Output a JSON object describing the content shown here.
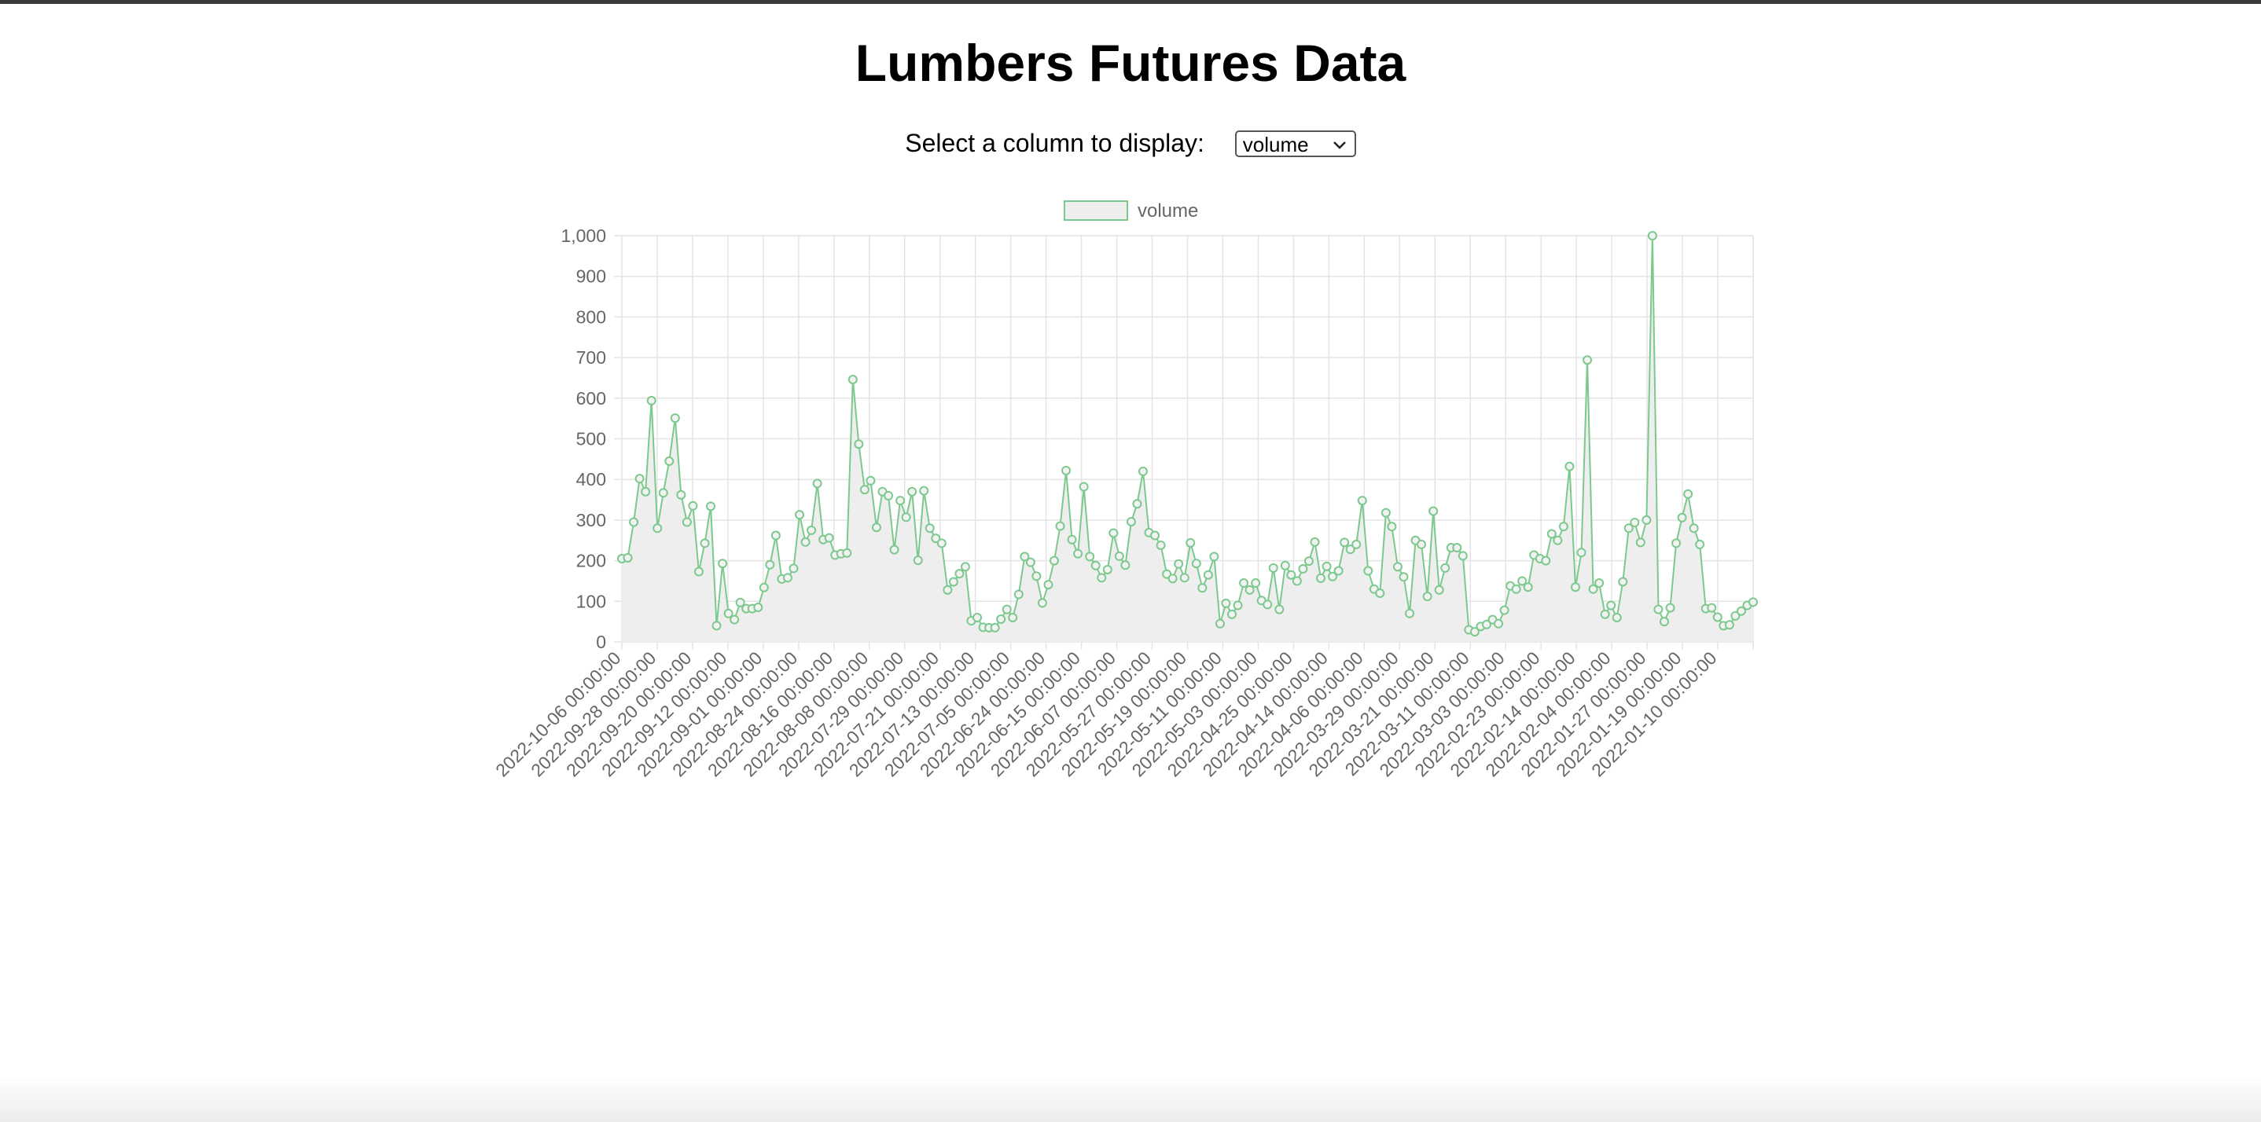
{
  "page": {
    "title": "Lumbers Futures Data"
  },
  "selector": {
    "label": "Select a column to display:",
    "value": "volume"
  },
  "colors": {
    "line": "#7cc98d",
    "fill": "#eeeeee",
    "grid": "#e4e4e4",
    "tick": "#666666"
  },
  "chart_data": {
    "type": "line",
    "title": "",
    "xlabel": "",
    "ylabel": "",
    "ylim": [
      0,
      1000
    ],
    "yticks": [
      "0",
      "100",
      "200",
      "300",
      "400",
      "500",
      "600",
      "700",
      "800",
      "900",
      "1,000"
    ],
    "grid": true,
    "legend": "top-center",
    "x_tick_labels": [
      "2022-10-06 00:00:00",
      "2022-09-28 00:00:00",
      "2022-09-20 00:00:00",
      "2022-09-12 00:00:00",
      "2022-09-01 00:00:00",
      "2022-08-24 00:00:00",
      "2022-08-16 00:00:00",
      "2022-08-08 00:00:00",
      "2022-07-29 00:00:00",
      "2022-07-21 00:00:00",
      "2022-07-13 00:00:00",
      "2022-07-05 00:00:00",
      "2022-06-24 00:00:00",
      "2022-06-15 00:00:00",
      "2022-06-07 00:00:00",
      "2022-05-27 00:00:00",
      "2022-05-19 00:00:00",
      "2022-05-11 00:00:00",
      "2022-05-03 00:00:00",
      "2022-04-25 00:00:00",
      "2022-04-14 00:00:00",
      "2022-04-06 00:00:00",
      "2022-03-29 00:00:00",
      "2022-03-21 00:00:00",
      "2022-03-11 00:00:00",
      "2022-03-03 00:00:00",
      "2022-02-23 00:00:00",
      "2022-02-14 00:00:00",
      "2022-02-04 00:00:00",
      "2022-01-27 00:00:00",
      "2022-01-19 00:00:00",
      "2022-01-10 00:00:00"
    ],
    "series": [
      {
        "name": "volume",
        "values": [
          205,
          207,
          295,
          402,
          370,
          594,
          280,
          367,
          445,
          551,
          362,
          295,
          335,
          173,
          243,
          334,
          40,
          193,
          70,
          55,
          97,
          82,
          82,
          85,
          134,
          190,
          262,
          155,
          158,
          181,
          313,
          246,
          275,
          390,
          252,
          256,
          214,
          217,
          219,
          646,
          487,
          375,
          397,
          282,
          370,
          360,
          227,
          348,
          307,
          370,
          201,
          372,
          280,
          255,
          243,
          128,
          148,
          168,
          185,
          52,
          60,
          36,
          35,
          35,
          56,
          80,
          60,
          117,
          210,
          196,
          162,
          96,
          141,
          200,
          285,
          422,
          252,
          217,
          382,
          210,
          188,
          158,
          178,
          268,
          211,
          189,
          296,
          340,
          420,
          269,
          262,
          238,
          167,
          156,
          192,
          158,
          244,
          193,
          133,
          165,
          210,
          45,
          95,
          68,
          90,
          145,
          128,
          145,
          102,
          92,
          182,
          80,
          188,
          165,
          150,
          180,
          199,
          246,
          157,
          186,
          161,
          175,
          245,
          228,
          240,
          348,
          175,
          130,
          120,
          318,
          284,
          185,
          160,
          70,
          250,
          240,
          112,
          322,
          128,
          182,
          232,
          232,
          212,
          30,
          25,
          38,
          43,
          55,
          45,
          78,
          138,
          130,
          150,
          135,
          214,
          205,
          200,
          266,
          250,
          284,
          432,
          135,
          220,
          694,
          130,
          145,
          68,
          90,
          60,
          148,
          280,
          294,
          245,
          300,
          1000,
          80,
          50,
          84,
          243,
          306,
          364,
          280,
          240,
          82,
          84,
          61,
          40,
          42,
          64,
          76,
          90,
          98
        ]
      }
    ]
  }
}
